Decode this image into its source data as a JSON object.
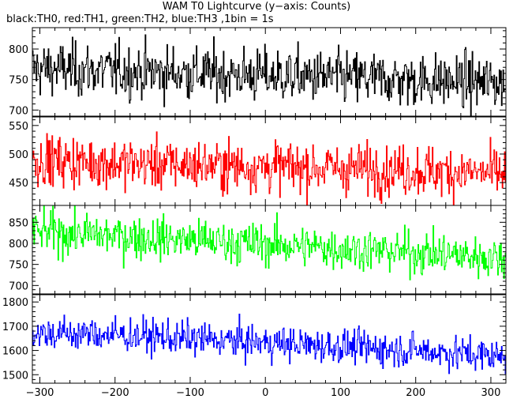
{
  "chart_data": {
    "type": "line",
    "title": "WAM T0 Lightcurve (y−axis: Counts)",
    "subtitle": "black:TH0, red:TH1, green:TH2, blue:TH3 ,1bin = 1s",
    "xlim": [
      -310,
      320
    ],
    "x_ticks": [
      -300,
      -200,
      -100,
      0,
      100,
      200,
      300
    ],
    "x_tick_labels": [
      "−300",
      "−200",
      "−100",
      "0",
      "100",
      "200",
      "300"
    ],
    "x_step": 1,
    "grid": false,
    "panels": [
      {
        "name": "TH0",
        "color": "#000000",
        "ylim": [
          690,
          835
        ],
        "y_ticks": [
          700,
          750,
          800
        ],
        "trend": {
          "x": [
            -310,
            -200,
            0,
            200,
            320
          ],
          "y": [
            768,
            764,
            757,
            749,
            744
          ]
        },
        "noise_sd": 22
      },
      {
        "name": "TH1",
        "color": "#ff0000",
        "ylim": [
          410,
          565
        ],
        "y_ticks": [
          450,
          500,
          550
        ],
        "trend": {
          "x": [
            -310,
            -200,
            0,
            200,
            320
          ],
          "y": [
            490,
            484,
            478,
            472,
            465
          ]
        },
        "noise_sd": 22
      },
      {
        "name": "TH2",
        "color": "#00ff00",
        "ylim": [
          680,
          890
        ],
        "y_ticks": [
          700,
          750,
          800,
          850
        ],
        "trend": {
          "x": [
            -310,
            -200,
            0,
            200,
            320
          ],
          "y": [
            828,
            818,
            798,
            778,
            765
          ]
        },
        "noise_sd": 25
      },
      {
        "name": "TH3",
        "color": "#0000ff",
        "ylim": [
          1465,
          1830
        ],
        "y_ticks": [
          1500,
          1600,
          1700,
          1800
        ],
        "trend": {
          "x": [
            -310,
            -200,
            0,
            200,
            320
          ],
          "y": [
            1672,
            1665,
            1632,
            1600,
            1575
          ]
        },
        "noise_sd": 35
      }
    ]
  }
}
